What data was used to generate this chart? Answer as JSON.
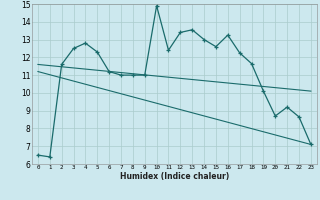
{
  "title": "",
  "xlabel": "Humidex (Indice chaleur)",
  "bg_color": "#cce8ee",
  "grid_color": "#aacccc",
  "line_color": "#1a6b6b",
  "xlim": [
    -0.5,
    23.5
  ],
  "ylim": [
    6,
    15
  ],
  "xticks": [
    0,
    1,
    2,
    3,
    4,
    5,
    6,
    7,
    8,
    9,
    10,
    11,
    12,
    13,
    14,
    15,
    16,
    17,
    18,
    19,
    20,
    21,
    22,
    23
  ],
  "yticks": [
    6,
    7,
    8,
    9,
    10,
    11,
    12,
    13,
    14,
    15
  ],
  "series1_x": [
    0,
    1,
    2,
    3,
    4,
    5,
    6,
    7,
    8,
    9,
    10,
    11,
    12,
    13,
    14,
    15,
    16,
    17,
    18,
    19,
    20,
    21,
    22,
    23
  ],
  "series1_y": [
    6.5,
    6.4,
    11.6,
    12.5,
    12.8,
    12.3,
    11.2,
    11.0,
    11.0,
    11.0,
    14.9,
    12.4,
    13.4,
    13.55,
    13.0,
    12.6,
    13.25,
    12.25,
    11.65,
    10.1,
    8.7,
    9.2,
    8.65,
    7.1
  ],
  "series2_x": [
    0,
    23
  ],
  "series2_y": [
    11.6,
    10.1
  ],
  "series3_x": [
    0,
    23
  ],
  "series3_y": [
    11.2,
    7.1
  ]
}
